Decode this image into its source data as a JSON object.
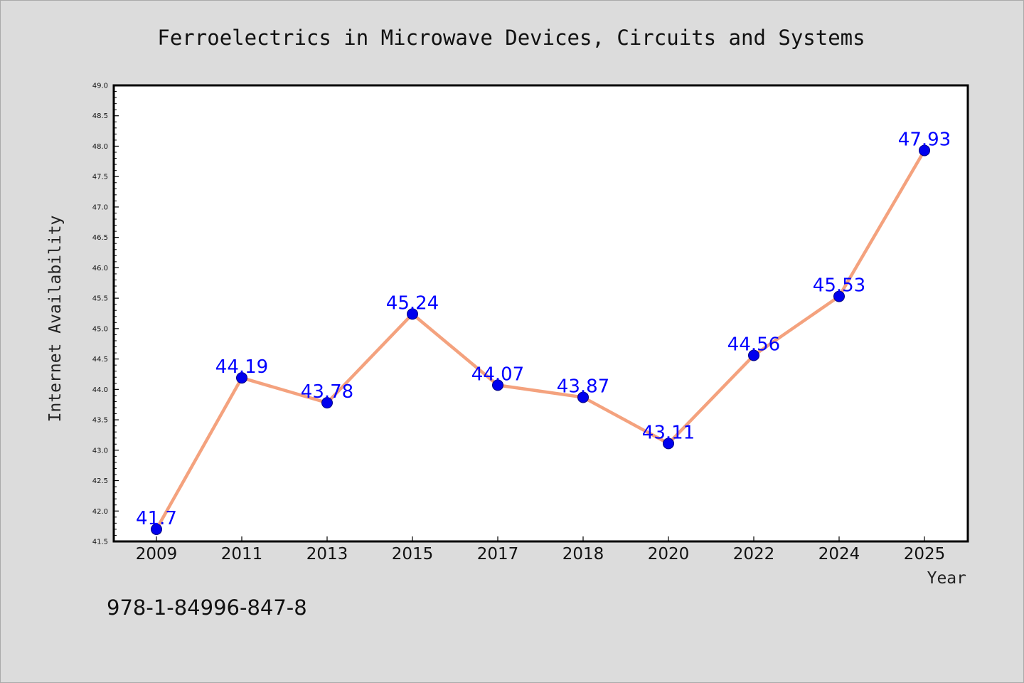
{
  "chart_data": {
    "type": "line",
    "title": "Ferroelectrics in Microwave Devices, Circuits and Systems",
    "xlabel": "Year",
    "ylabel": "Internet Availability",
    "categories": [
      "2009",
      "2011",
      "2013",
      "2015",
      "2017",
      "2018",
      "2020",
      "2022",
      "2024",
      "2025"
    ],
    "series": [
      {
        "values": [
          41.7,
          44.19,
          43.78,
          45.24,
          44.07,
          43.87,
          43.11,
          44.56,
          45.53,
          47.93
        ],
        "labels": [
          "41.7",
          "44.19",
          "43.78",
          "45.24",
          "44.07",
          "43.87",
          "43.11",
          "44.56",
          "45.53",
          "47.93"
        ],
        "line_color": "#f4a27e",
        "marker_color": "#0000ee"
      }
    ],
    "ylim": [
      41.5,
      49.0
    ],
    "yticks": [
      41.5,
      42.0,
      42.5,
      43.0,
      43.5,
      44.0,
      44.5,
      45.0,
      45.5,
      46.0,
      46.5,
      47.0,
      47.5,
      48.0,
      48.5,
      49.0
    ],
    "ytick_labels": [
      "41.5",
      "42.0",
      "42.5",
      "43.0",
      "43.5",
      "44.0",
      "44.5",
      "45.0",
      "45.5",
      "46.0",
      "46.5",
      "47.0",
      "47.5",
      "48.0",
      "48.5",
      "49.0"
    ],
    "grid": false,
    "background": "#dcdcdc",
    "plot_background": "#ffffff",
    "label_color": "#0000ff"
  },
  "annotation": "978-1-84996-847-8"
}
